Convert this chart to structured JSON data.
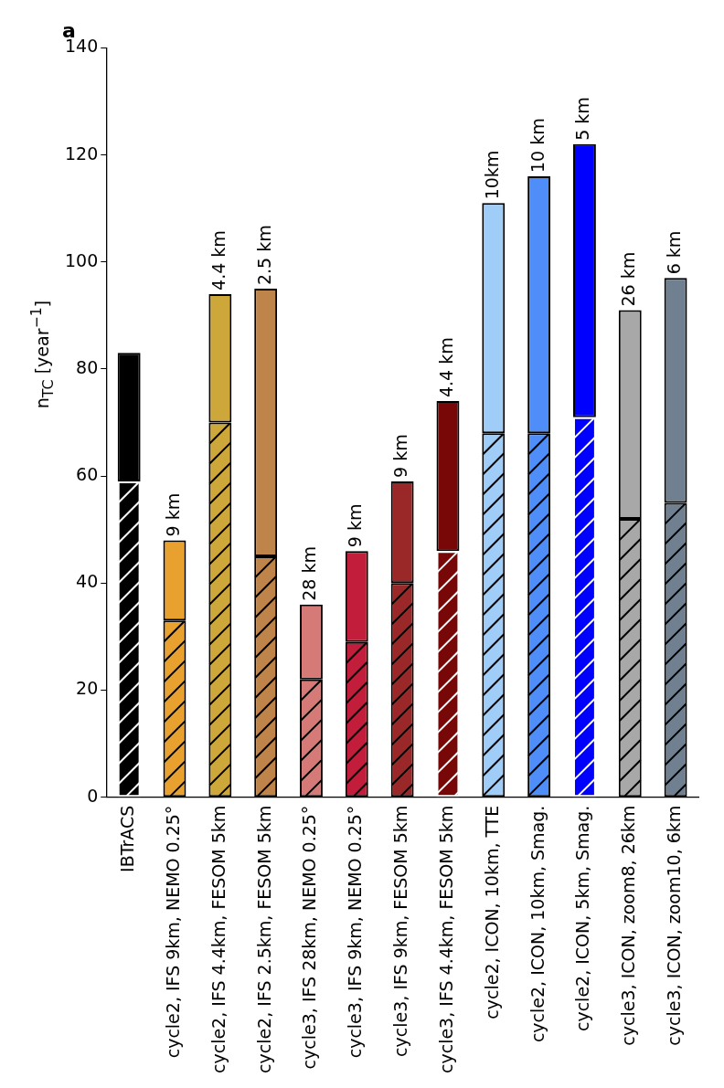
{
  "chart_data": {
    "type": "bar",
    "title": "a",
    "ylabel": "n$_{TC}$ [year$^{−1}$]",
    "categories": [
      "IBTrACS",
      "cycle2, IFS 9km, NEMO 0.25°",
      "cycle2, IFS 4.4km, FESOM 5km",
      "cycle2, IFS 2.5km, FESOM 5km",
      "cycle3, IFS 28km, NEMO 0.25°",
      "cycle3, IFS 9km, NEMO 0.25°",
      "cycle3, IFS 9km, FESOM 5km",
      "cycle3, IFS 4.4km, FESOM 5km",
      "cycle2, ICON, 10km, TTE",
      "cycle2, ICON, 10km, Smag.",
      "cycle2, ICON, 5km, Smag.",
      "cycle3, ICON, zoom8, 26km",
      "cycle3, ICON, zoom10, 6km"
    ],
    "stacked": true,
    "series": [
      {
        "values": [
          59,
          33,
          70,
          45,
          22,
          29,
          40,
          46,
          68,
          68,
          71,
          52,
          55
        ],
        "colors": [
          "#000000",
          "#e8a12e",
          "#cda73a",
          "#bf844a",
          "#d67a78",
          "#c21e3c",
          "#9a2828",
          "#780808",
          "#a0cdf8",
          "#4f8ef9",
          "#0000ff",
          "#a8a8a8",
          "#708090"
        ]
      },
      {
        "values": [
          24,
          15,
          24,
          50,
          14,
          17,
          19,
          28,
          43,
          48,
          51,
          39,
          42
        ],
        "colors": [
          "#000000",
          "#e8a12e",
          "#cda73a",
          "#bf844a",
          "#d67a78",
          "#c21e3c",
          "#9a2828",
          "#780808",
          "#a0cdf8",
          "#4f8ef9",
          "#0000ff",
          "#a8a8a8",
          "#708090"
        ]
      }
    ],
    "ylim": [
      0,
      140
    ],
    "yticks": [
      0,
      20,
      40,
      60,
      80,
      100,
      120,
      140
    ],
    "grid": false,
    "legend": false,
    "annotations": [
      {
        "text": "9 km",
        "x": "cycle2, IFS 9km, NEMO 0.25°",
        "y": 48
      },
      {
        "text": "4.4 km",
        "x": "cycle2, IFS 4.4km, FESOM 5km",
        "y": 94
      },
      {
        "text": "2.5 km",
        "x": "cycle2, IFS 2.5km, FESOM 5km",
        "y": 95
      },
      {
        "text": "28 km",
        "x": "cycle3, IFS 28km, NEMO 0.25°",
        "y": 36
      },
      {
        "text": "9 km",
        "x": "cycle3, IFS 9km, NEMO 0.25°",
        "y": 46
      },
      {
        "text": "9 km",
        "x": "cycle3, IFS 9km, FESOM 5km",
        "y": 59
      },
      {
        "text": "4.4 km",
        "x": "cycle3, IFS 4.4km, FESOM 5km",
        "y": 74
      },
      {
        "text": "10km",
        "x": "cycle2, ICON, 10km, TTE",
        "y": 111
      },
      {
        "text": "10 km",
        "x": "cycle2, ICON, 10km, Smag.",
        "y": 116
      },
      {
        "text": "5 km",
        "x": "cycle2, ICON, 5km, Smag.",
        "y": 122
      },
      {
        "text": "26 km",
        "x": "cycle3, ICON, zoom8, 26km",
        "y": 91
      },
      {
        "text": "6 km",
        "x": "cycle3, ICON, zoom10, 6km",
        "y": 97
      }
    ]
  }
}
